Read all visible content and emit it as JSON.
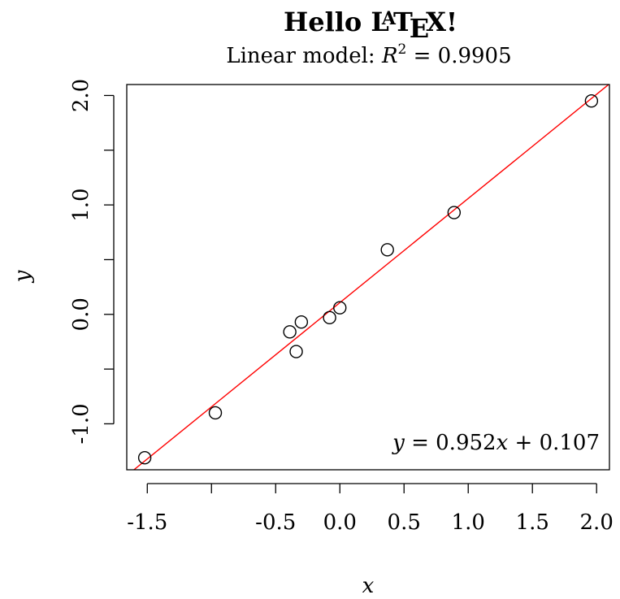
{
  "chart_data": {
    "type": "scatter",
    "title": "Hello LaTeX!",
    "title_parts": {
      "hello": "Hello",
      "la": "L",
      "a": "A",
      "t": "T",
      "e": "E",
      "x": "X",
      "bang": "!"
    },
    "subtitle": "Linear model: R² = 0.9905",
    "subtitle_parts": {
      "prefix": "Linear model: ",
      "r": "R",
      "sup": "2",
      "suffix": " = 0.9905"
    },
    "xlabel": "x",
    "ylabel": "y",
    "xlim": [
      -1.66,
      2.1
    ],
    "ylim": [
      -1.42,
      2.1
    ],
    "x_ticks": [
      -1.5,
      -1.0,
      -0.5,
      0.0,
      0.5,
      1.0,
      1.5,
      2.0
    ],
    "x_tick_labels": [
      "-1.5",
      "",
      "-0.5",
      "0.0",
      "0.5",
      "1.0",
      "1.5",
      "2.0"
    ],
    "y_ticks": [
      -1.0,
      -0.5,
      0.0,
      0.5,
      1.0,
      1.5,
      2.0
    ],
    "y_tick_labels": [
      "-1.0",
      "",
      "0.0",
      "",
      "1.0",
      "",
      "2.0"
    ],
    "points": {
      "x": [
        -1.52,
        -0.97,
        -0.39,
        -0.34,
        -0.3,
        -0.08,
        0.0,
        0.37,
        0.89,
        1.96
      ],
      "y": [
        -1.31,
        -0.9,
        -0.16,
        -0.34,
        -0.07,
        -0.03,
        0.06,
        0.59,
        0.93,
        1.95
      ]
    },
    "fit": {
      "slope": 0.952,
      "intercept": 0.107,
      "color": "#ff0000"
    },
    "equation_label": "y = 0.952x + 0.107",
    "equation_parts": {
      "y": "y",
      "eq": " = 0.952",
      "x": "x",
      "rest": " + 0.107"
    },
    "legend": "none",
    "grid": false
  }
}
